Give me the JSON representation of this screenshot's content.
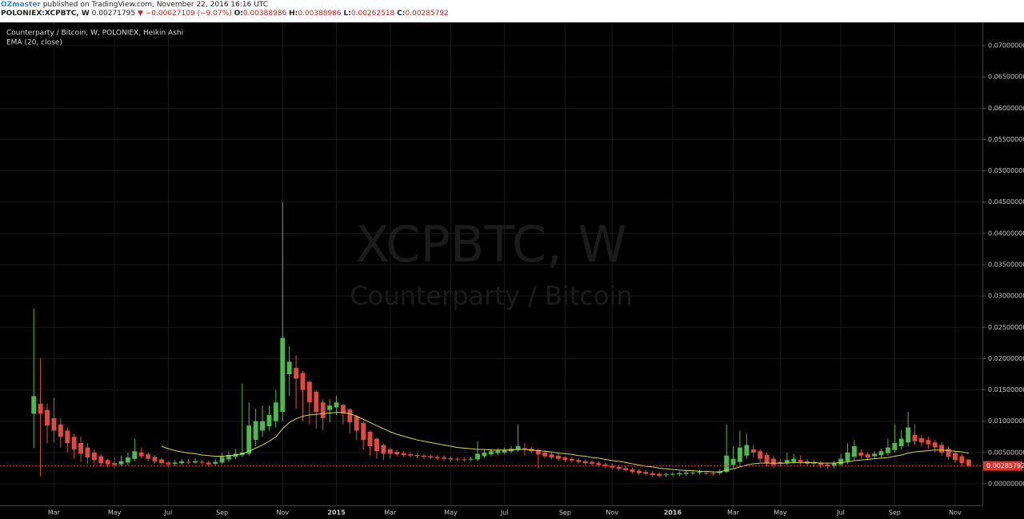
{
  "header": {
    "author": "OZmaster",
    "published": "published on TradingView.com, November 22, 2016 16:16 UTC",
    "symbol": "POLONIEX:XCPBTC, W",
    "last": "0.00271795",
    "change": "−0.00027109 (−9.07%)",
    "o_label": "O:",
    "o": "0.00388986",
    "h_label": "H:",
    "h": "0.00388986",
    "l_label": "L:",
    "l": "0.00262518",
    "c_label": "C:",
    "c": "0.00285792"
  },
  "chart_data": {
    "type": "candlestick",
    "title": "Counterparty / Bitcoin, W, POLONIEX, Heikin Ashi",
    "watermark": "XCPBTC, W",
    "watermark_sub": "Counterparty / Bitcoin",
    "up_color": "#4cbb4c",
    "down_color": "#e04b40",
    "grid": true,
    "categories": [
      null,
      null,
      null,
      "Mar",
      null,
      null,
      null,
      null,
      null,
      null,
      null,
      null,
      "May",
      null,
      null,
      null,
      null,
      null,
      null,
      null,
      "Jul",
      null,
      null,
      null,
      null,
      null,
      null,
      null,
      "Sep",
      null,
      null,
      null,
      null,
      null,
      null,
      null,
      null,
      "Nov",
      null,
      null,
      null,
      null,
      null,
      null,
      null,
      "2015",
      null,
      null,
      null,
      null,
      null,
      null,
      null,
      "Mar",
      null,
      null,
      null,
      null,
      null,
      null,
      null,
      null,
      "May",
      null,
      null,
      null,
      null,
      null,
      null,
      null,
      "Jul",
      null,
      null,
      null,
      null,
      null,
      null,
      null,
      null,
      "Sep",
      null,
      null,
      null,
      null,
      null,
      null,
      "Nov",
      null,
      null,
      null,
      null,
      null,
      null,
      null,
      null,
      "2016",
      null,
      null,
      null,
      null,
      null,
      null,
      null,
      null,
      "Mar",
      null,
      null,
      null,
      null,
      null,
      null,
      "May",
      null,
      null,
      null,
      null,
      null,
      null,
      null,
      null,
      "Jul",
      null,
      null,
      null,
      null,
      null,
      null,
      null,
      "Sep",
      null,
      null,
      null,
      null,
      null,
      null,
      null,
      null,
      "Nov",
      null,
      null
    ],
    "open": [
      0.0112,
      0.0128,
      0.0118,
      0.0105,
      0.0095,
      0.0085,
      0.0075,
      0.0065,
      0.0058,
      0.005,
      0.0044,
      0.0038,
      0.0033,
      0.0031,
      0.0034,
      0.004,
      0.005,
      0.0047,
      0.0043,
      0.0039,
      0.0034,
      0.0032,
      0.0033,
      0.0035,
      0.0034,
      0.0035,
      0.0034,
      0.0032,
      0.0034,
      0.0039,
      0.0043,
      0.0046,
      0.0048,
      0.007,
      0.0085,
      0.0092,
      0.01,
      0.0115,
      0.0175,
      0.0185,
      0.0177,
      0.0163,
      0.0147,
      0.013,
      0.0118,
      0.0122,
      0.0126,
      0.0119,
      0.0108,
      0.0097,
      0.0083,
      0.0072,
      0.0062,
      0.0055,
      0.0051,
      0.0049,
      0.0047,
      0.0046,
      0.0045,
      0.0044,
      0.0043,
      0.0042,
      0.0041,
      0.004,
      0.0039,
      0.0039,
      0.0039,
      0.0044,
      0.0047,
      0.0049,
      0.005,
      0.0052,
      0.0054,
      0.0057,
      0.0056,
      0.0054,
      0.005,
      0.0047,
      0.0045,
      0.0042,
      0.004,
      0.0038,
      0.0036,
      0.0035,
      0.0033,
      0.0031,
      0.0029,
      0.0027,
      0.0025,
      0.0023,
      0.0021,
      0.0019,
      0.0017,
      0.0016,
      0.0014,
      0.0015,
      0.0015,
      0.0016,
      0.0017,
      0.0018,
      0.0018,
      0.0017,
      0.0017,
      0.0019,
      0.003,
      0.0035,
      0.0045,
      0.0055,
      0.0052,
      0.0046,
      0.004,
      0.0035,
      0.0033,
      0.0035,
      0.0038,
      0.0036,
      0.0034,
      0.0033,
      0.0031,
      0.0029,
      0.0031,
      0.0036,
      0.0043,
      0.005,
      0.0047,
      0.0044,
      0.0046,
      0.0049,
      0.0054,
      0.006,
      0.0066,
      0.0078,
      0.0073,
      0.007,
      0.0066,
      0.0062,
      0.0056,
      0.0049,
      0.0044,
      0.00388986
    ],
    "close": [
      0.014,
      0.0112,
      0.0093,
      0.0085,
      0.0075,
      0.0065,
      0.0055,
      0.0048,
      0.0042,
      0.0038,
      0.0033,
      0.0031,
      0.003,
      0.0036,
      0.0042,
      0.0052,
      0.0044,
      0.004,
      0.0036,
      0.0033,
      0.0031,
      0.0034,
      0.0036,
      0.0034,
      0.0036,
      0.0034,
      0.0031,
      0.0035,
      0.0043,
      0.0046,
      0.0048,
      0.005,
      0.0093,
      0.01,
      0.01,
      0.011,
      0.013,
      0.0233,
      0.0195,
      0.0168,
      0.015,
      0.013,
      0.0115,
      0.0105,
      0.0125,
      0.013,
      0.0112,
      0.0098,
      0.0085,
      0.007,
      0.006,
      0.0052,
      0.0048,
      0.0048,
      0.0047,
      0.0046,
      0.0045,
      0.0044,
      0.0043,
      0.0042,
      0.0041,
      0.004,
      0.0039,
      0.0039,
      0.0038,
      0.004,
      0.0048,
      0.005,
      0.0052,
      0.0053,
      0.0054,
      0.0056,
      0.006,
      0.0055,
      0.0052,
      0.0047,
      0.0044,
      0.0042,
      0.004,
      0.0038,
      0.0037,
      0.0035,
      0.0033,
      0.0032,
      0.003,
      0.0028,
      0.0026,
      0.0024,
      0.0022,
      0.0019,
      0.0017,
      0.0016,
      0.0014,
      0.0013,
      0.0015,
      0.0016,
      0.0017,
      0.0018,
      0.0018,
      0.0019,
      0.0017,
      0.0016,
      0.002,
      0.0045,
      0.004,
      0.0058,
      0.0062,
      0.005,
      0.004,
      0.0033,
      0.003,
      0.0032,
      0.0038,
      0.004,
      0.0035,
      0.0032,
      0.0032,
      0.003,
      0.0028,
      0.0033,
      0.004,
      0.005,
      0.006,
      0.0045,
      0.0042,
      0.0048,
      0.0052,
      0.0058,
      0.0065,
      0.0072,
      0.009,
      0.0068,
      0.0066,
      0.0063,
      0.0058,
      0.005,
      0.0043,
      0.0038,
      0.0033,
      0.00285792
    ],
    "high": [
      0.028,
      0.02,
      0.0128,
      0.0138,
      0.0105,
      0.009,
      0.008,
      0.0075,
      0.0065,
      0.0055,
      0.0048,
      0.004,
      0.0042,
      0.0045,
      0.005,
      0.0072,
      0.0058,
      0.005,
      0.0046,
      0.0041,
      0.0036,
      0.0038,
      0.004,
      0.004,
      0.0041,
      0.0038,
      0.0037,
      0.004,
      0.005,
      0.0052,
      0.0055,
      0.016,
      0.013,
      0.012,
      0.0125,
      0.0125,
      0.015,
      0.045,
      0.022,
      0.0205,
      0.018,
      0.0165,
      0.015,
      0.0135,
      0.0135,
      0.014,
      0.0128,
      0.012,
      0.011,
      0.01,
      0.0085,
      0.0074,
      0.0064,
      0.0058,
      0.0054,
      0.0052,
      0.005,
      0.0049,
      0.0048,
      0.0047,
      0.0046,
      0.0045,
      0.0044,
      0.0043,
      0.0042,
      0.0043,
      0.0068,
      0.0055,
      0.0056,
      0.0057,
      0.0058,
      0.006,
      0.0095,
      0.0065,
      0.0059,
      0.0057,
      0.0053,
      0.005,
      0.0048,
      0.0045,
      0.0043,
      0.0041,
      0.0039,
      0.0038,
      0.0036,
      0.0034,
      0.0032,
      0.003,
      0.0028,
      0.0026,
      0.0024,
      0.0022,
      0.002,
      0.0019,
      0.0018,
      0.0019,
      0.002,
      0.0021,
      0.0021,
      0.0022,
      0.0021,
      0.002,
      0.0023,
      0.0095,
      0.006,
      0.0085,
      0.008,
      0.0062,
      0.0055,
      0.005,
      0.0045,
      0.004,
      0.005,
      0.0048,
      0.0045,
      0.004,
      0.0038,
      0.0036,
      0.0034,
      0.0037,
      0.0048,
      0.0065,
      0.007,
      0.0055,
      0.005,
      0.0052,
      0.0056,
      0.0072,
      0.0095,
      0.0085,
      0.0115,
      0.0095,
      0.0078,
      0.0075,
      0.007,
      0.0066,
      0.006,
      0.0053,
      0.0048,
      0.00388986
    ],
    "low": [
      0.0057,
      0.0012,
      0.0065,
      0.0066,
      0.0058,
      0.005,
      0.004,
      0.0035,
      0.0032,
      0.003,
      0.0028,
      0.0026,
      0.0025,
      0.0028,
      0.003,
      0.0036,
      0.004,
      0.0036,
      0.0032,
      0.003,
      0.0026,
      0.0028,
      0.003,
      0.0031,
      0.0032,
      0.003,
      0.0027,
      0.0029,
      0.0031,
      0.0035,
      0.004,
      0.0043,
      0.0045,
      0.006,
      0.0075,
      0.0085,
      0.009,
      0.01,
      0.014,
      0.012,
      0.01,
      0.0095,
      0.0088,
      0.0085,
      0.0098,
      0.011,
      0.0095,
      0.008,
      0.007,
      0.0055,
      0.0045,
      0.004,
      0.0038,
      0.004,
      0.0044,
      0.0043,
      0.0042,
      0.0041,
      0.004,
      0.0039,
      0.0038,
      0.0037,
      0.0036,
      0.0036,
      0.0035,
      0.0036,
      0.0036,
      0.0041,
      0.0044,
      0.0046,
      0.0047,
      0.0049,
      0.0051,
      0.0045,
      0.0049,
      0.0025,
      0.0041,
      0.0039,
      0.0037,
      0.0035,
      0.0034,
      0.0032,
      0.003,
      0.0029,
      0.0027,
      0.0025,
      0.0023,
      0.0021,
      0.0019,
      0.0016,
      0.0014,
      0.0013,
      0.0011,
      0.001,
      0.0011,
      0.0012,
      0.0012,
      0.0013,
      0.0014,
      0.0015,
      0.0014,
      0.0013,
      0.0014,
      0.0017,
      0.0025,
      0.003,
      0.004,
      0.0042,
      0.0035,
      0.0028,
      0.0025,
      0.0027,
      0.003,
      0.0032,
      0.003,
      0.0028,
      0.0027,
      0.0025,
      0.0023,
      0.0025,
      0.0028,
      0.0032,
      0.0038,
      0.004,
      0.0037,
      0.004,
      0.0042,
      0.0045,
      0.005,
      0.0055,
      0.006,
      0.0062,
      0.006,
      0.0056,
      0.005,
      0.0045,
      0.0038,
      0.0033,
      0.0028,
      0.00262518
    ],
    "ema": {
      "name": "EMA (20, close)",
      "color": "#d8d84a",
      "values": [
        null,
        null,
        null,
        null,
        null,
        null,
        null,
        null,
        null,
        null,
        null,
        null,
        null,
        null,
        null,
        null,
        null,
        null,
        null,
        0.006,
        0.0056,
        0.0053,
        0.0051,
        0.0049,
        0.0048,
        0.0046,
        0.0045,
        0.0044,
        0.0044,
        0.0045,
        0.0046,
        0.0048,
        0.0052,
        0.0057,
        0.0062,
        0.0068,
        0.0075,
        0.0088,
        0.0098,
        0.0104,
        0.0108,
        0.011,
        0.0111,
        0.0112,
        0.0113,
        0.0114,
        0.0114,
        0.0112,
        0.0108,
        0.0103,
        0.0098,
        0.0093,
        0.0088,
        0.0083,
        0.0079,
        0.0076,
        0.0073,
        0.007,
        0.0068,
        0.0066,
        0.0064,
        0.0062,
        0.006,
        0.0058,
        0.0057,
        0.0056,
        0.0055,
        0.0055,
        0.0054,
        0.0054,
        0.0054,
        0.0054,
        0.0055,
        0.0055,
        0.0054,
        0.0053,
        0.0052,
        0.0051,
        0.0049,
        0.0048,
        0.0047,
        0.0045,
        0.0044,
        0.0042,
        0.0041,
        0.0039,
        0.0037,
        0.0036,
        0.0034,
        0.0032,
        0.003,
        0.0028,
        0.0027,
        0.0025,
        0.0024,
        0.0023,
        0.0022,
        0.0021,
        0.0021,
        0.002,
        0.002,
        0.0019,
        0.0019,
        0.0022,
        0.0024,
        0.0027,
        0.003,
        0.0032,
        0.0033,
        0.0033,
        0.0033,
        0.0033,
        0.0033,
        0.0034,
        0.0034,
        0.0034,
        0.0034,
        0.0033,
        0.0033,
        0.0033,
        0.0034,
        0.0035,
        0.0037,
        0.0038,
        0.0039,
        0.004,
        0.0041,
        0.0042,
        0.0044,
        0.0046,
        0.0049,
        0.0051,
        0.0052,
        0.0053,
        0.0054,
        0.0054,
        0.0053,
        0.0052,
        0.0051,
        0.0049
      ]
    },
    "price_line_color": "#e0302a",
    "ylim": [
      -0.00345,
      0.07345
    ],
    "yticks": [
      {
        "value": 0,
        "label": "0.00000000"
      },
      {
        "value": 0.005,
        "label": "0.00500000"
      },
      {
        "value": 0.01,
        "label": "0.01000000"
      },
      {
        "value": 0.015,
        "label": "0.01500000"
      },
      {
        "value": 0.02,
        "label": "0.02000000"
      },
      {
        "value": 0.025,
        "label": "0.02500000"
      },
      {
        "value": 0.03,
        "label": "0.03000000"
      },
      {
        "value": 0.035,
        "label": "0.03500000"
      },
      {
        "value": 0.04,
        "label": "0.04000000"
      },
      {
        "value": 0.045,
        "label": "0.04500000"
      },
      {
        "value": 0.05,
        "label": "0.05000000"
      },
      {
        "value": 0.055,
        "label": "0.05500000"
      },
      {
        "value": 0.06,
        "label": "0.06000000"
      },
      {
        "value": 0.065,
        "label": "0.06500000"
      },
      {
        "value": 0.07,
        "label": "0.07000000"
      }
    ]
  }
}
